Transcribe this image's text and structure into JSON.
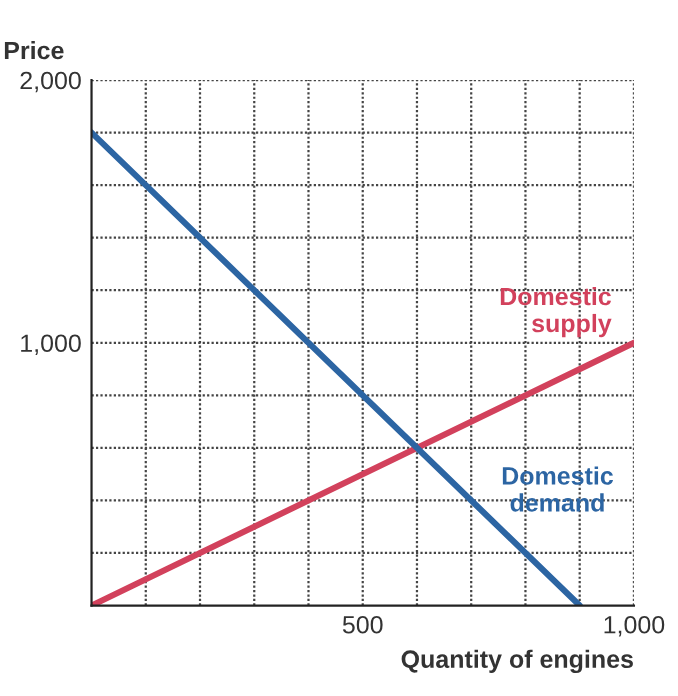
{
  "chart_data": {
    "type": "line",
    "xlabel": "Quantity of engines",
    "ylabel": "Price",
    "xlim": [
      0,
      1000
    ],
    "ylim": [
      0,
      2000
    ],
    "xticks": [
      {
        "value": 100,
        "label": null
      },
      {
        "value": 200,
        "label": null
      },
      {
        "value": 300,
        "label": null
      },
      {
        "value": 400,
        "label": null
      },
      500,
      {
        "value": 600,
        "label": null
      },
      {
        "value": 700,
        "label": null
      },
      {
        "value": 800,
        "label": null
      },
      {
        "value": 900,
        "label": null
      },
      {
        "value": 1000,
        "label": "1,000"
      }
    ],
    "yticks": [
      {
        "value": 200,
        "label": null
      },
      {
        "value": 400,
        "label": null
      },
      {
        "value": 600,
        "label": null
      },
      {
        "value": 800,
        "label": null
      },
      {
        "value": 1000,
        "label": "1,000"
      },
      {
        "value": 1200,
        "label": null
      },
      {
        "value": 1400,
        "label": null
      },
      {
        "value": 1600,
        "label": null
      },
      {
        "value": 1800,
        "label": null
      },
      {
        "value": 2000,
        "label": "2,000"
      }
    ],
    "grid": true,
    "legend": false,
    "marker": "none",
    "line_style": "solid",
    "series": [
      {
        "name": "Domestic\nsupply",
        "color": "#d2415c",
        "x": [
          0,
          1000
        ],
        "values": [
          0,
          1000
        ]
      },
      {
        "name": "Domestic\ndemand",
        "color": "#2c65a3",
        "x": [
          0,
          900
        ],
        "values": [
          1800,
          0
        ]
      }
    ]
  }
}
